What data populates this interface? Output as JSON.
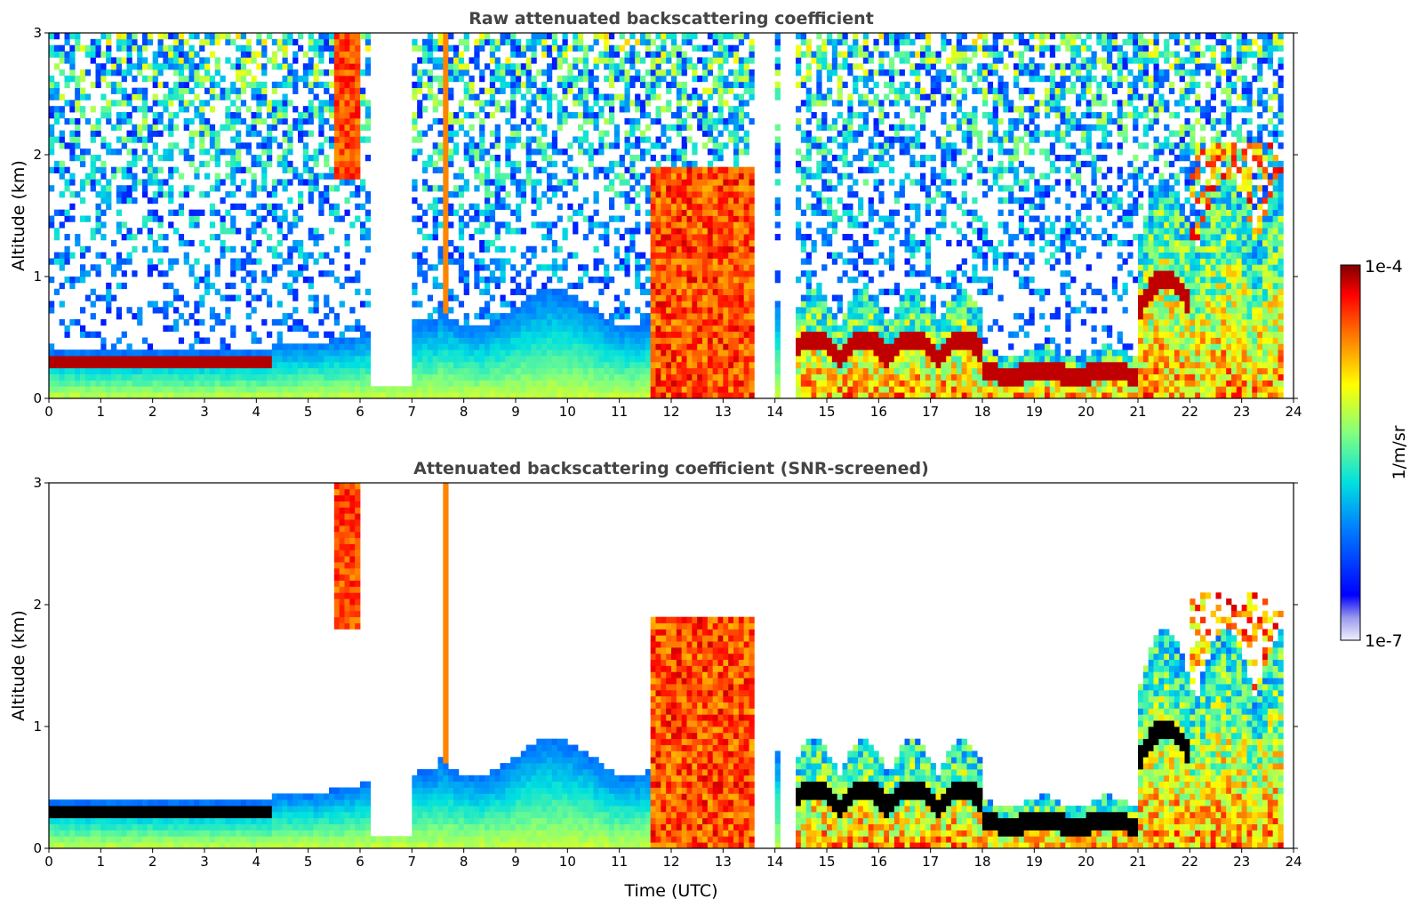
{
  "chart_data": [
    {
      "type": "heatmap",
      "title": "Raw attenuated backscattering coefficient",
      "xlabel": "",
      "ylabel": "Altitude (km)",
      "xlim": [
        0,
        24
      ],
      "ylim": [
        0,
        3
      ],
      "xticks": [
        "0",
        "1",
        "2",
        "3",
        "4",
        "5",
        "6",
        "7",
        "8",
        "9",
        "10",
        "11",
        "12",
        "13",
        "14",
        "15",
        "16",
        "17",
        "18",
        "19",
        "20",
        "21",
        "22",
        "23",
        "24"
      ],
      "yticks": [
        "0",
        "1",
        "2",
        "3"
      ],
      "screened": false
    },
    {
      "type": "heatmap",
      "title": "Attenuated backscattering coefficient (SNR-screened)",
      "xlabel": "Time (UTC)",
      "ylabel": "Altitude (km)",
      "xlim": [
        0,
        24
      ],
      "ylim": [
        0,
        3
      ],
      "xticks": [
        "0",
        "1",
        "2",
        "3",
        "4",
        "5",
        "6",
        "7",
        "8",
        "9",
        "10",
        "11",
        "12",
        "13",
        "14",
        "15",
        "16",
        "17",
        "18",
        "19",
        "20",
        "21",
        "22",
        "23",
        "24"
      ],
      "yticks": [
        "0",
        "1",
        "2",
        "3"
      ],
      "screened": true
    }
  ],
  "colorbar": {
    "label": "1/m/sr",
    "max_label": "1e-4",
    "min_label": "1e-7",
    "scale": "log",
    "range": [
      1e-07,
      0.0001
    ],
    "colormap": "jet"
  }
}
